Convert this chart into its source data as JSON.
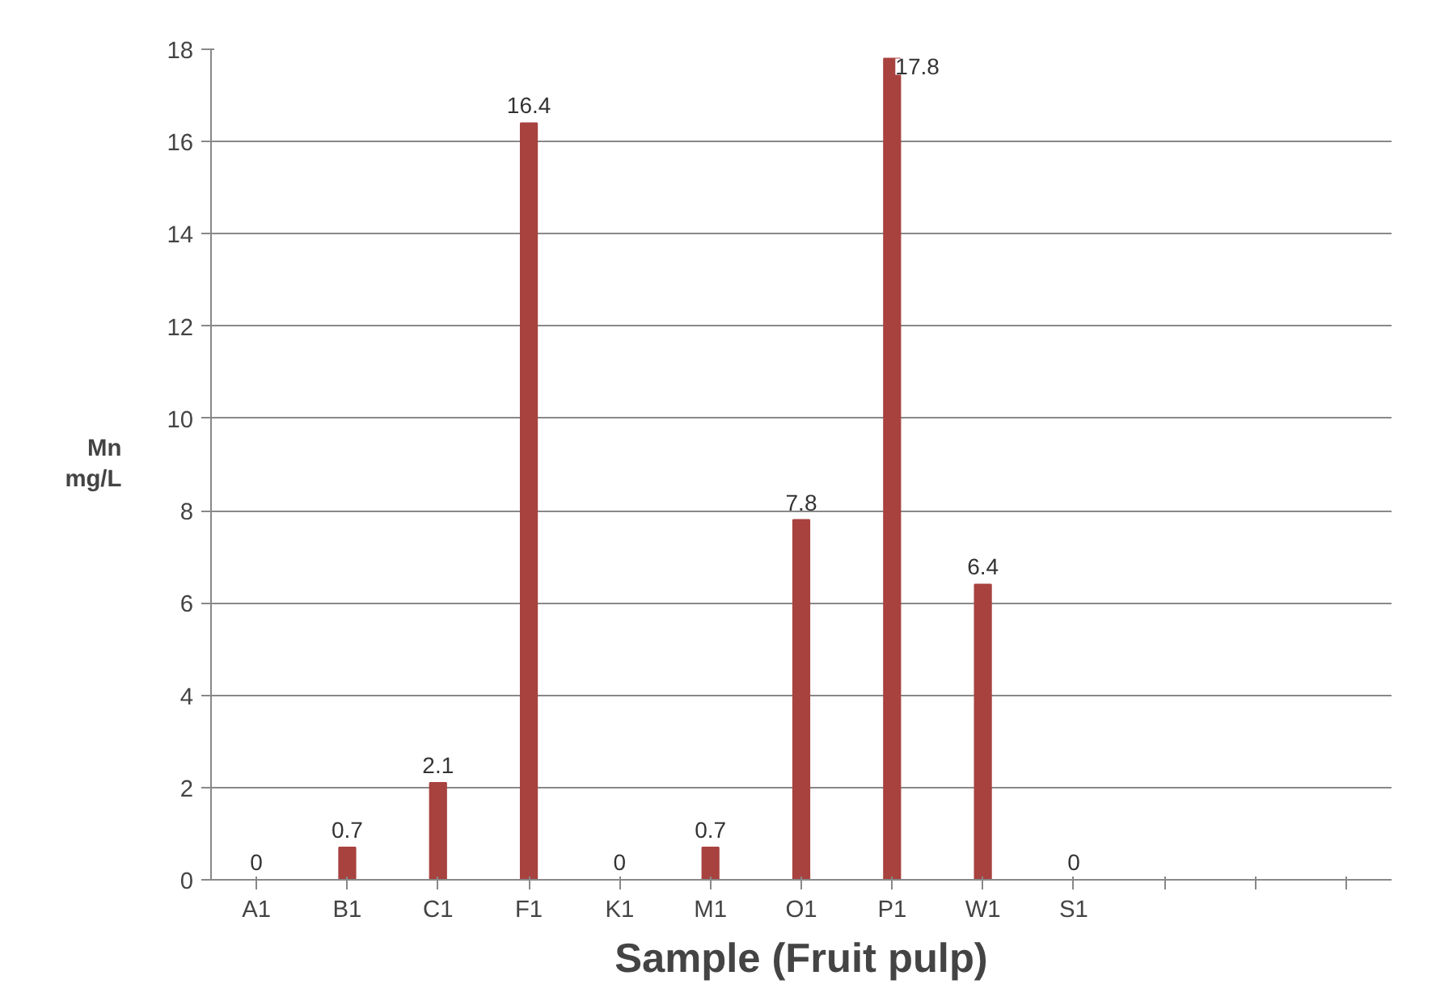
{
  "chart_data": {
    "type": "bar",
    "xlabel": "Sample (Fruit pulp)",
    "ylabel": "Mn\nmg/L",
    "categories": [
      "A1",
      "B1",
      "C1",
      "F1",
      "K1",
      "M1",
      "O1",
      "P1",
      "W1",
      "S1",
      null,
      null,
      null
    ],
    "values": [
      0,
      0.7,
      2.1,
      16.4,
      0,
      0.7,
      7.8,
      17.8,
      6.4,
      0,
      null,
      null,
      null
    ],
    "color": "#a8423f",
    "ylim": [
      0,
      18
    ],
    "yticks": [
      0,
      2,
      4,
      6,
      8,
      10,
      12,
      14,
      16,
      18
    ],
    "grid": "y",
    "data_labels": true
  }
}
